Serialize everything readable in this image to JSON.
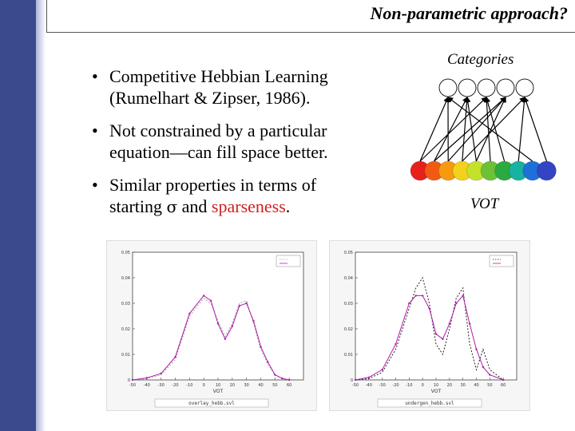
{
  "slide": {
    "title": "Non-parametric approach?",
    "bullets": [
      {
        "line1": "Competitive Hebbian Learning",
        "line2": "(Rumelhart & Zipser, 1986)."
      },
      {
        "line1": "Not constrained by a particular",
        "line2": "equation—can fill space better."
      },
      {
        "line1": "Similar properties in terms of",
        "line2_a": "starting ",
        "sigma": "σ",
        "line2_b": " and ",
        "line2_red": "sparseness",
        "line2_c": "."
      }
    ],
    "bullet_symbol": "•"
  },
  "diagram": {
    "top_label": "Categories",
    "bottom_label": "VOT",
    "category_count": 5,
    "vot_colors": [
      "#e8201b",
      "#f25a12",
      "#f79a10",
      "#f2d21a",
      "#c5e22a",
      "#6cc236",
      "#2bab3f",
      "#17b2a0",
      "#1f6fd8",
      "#3345c2"
    ]
  },
  "chart_data": [
    {
      "type": "line",
      "title": "",
      "xlabel": "VOT",
      "ylabel": "",
      "xlim": [
        -50,
        70
      ],
      "ylim": [
        0,
        0.05
      ],
      "x": [
        -50,
        -40,
        -30,
        -20,
        -10,
        0,
        5,
        10,
        15,
        20,
        25,
        30,
        35,
        40,
        45,
        50,
        55,
        60
      ],
      "series": [
        {
          "color": "#9aa0a0",
          "dash": true,
          "values": [
            0,
            0.0005,
            0.002,
            0.008,
            0.025,
            0.032,
            0.03,
            0.023,
            0.017,
            0.022,
            0.03,
            0.031,
            0.022,
            0.012,
            0.006,
            0.002,
            0.0005,
            0
          ]
        },
        {
          "color": "#b01aa8",
          "dash": false,
          "values": [
            0,
            0.0008,
            0.0025,
            0.009,
            0.026,
            0.033,
            0.031,
            0.022,
            0.016,
            0.021,
            0.029,
            0.03,
            0.023,
            0.013,
            0.007,
            0.002,
            0.0006,
            0
          ]
        }
      ],
      "yticks": [
        "0",
        "0.01",
        "0.02",
        "0.03",
        "0.04",
        "0.05"
      ],
      "xticks": [
        "-50",
        "-40",
        "-30",
        "-20",
        "-10",
        "0",
        "10",
        "20",
        "30",
        "40",
        "50",
        "60"
      ],
      "filename": "overlay_hebb.svl"
    },
    {
      "type": "line",
      "title": "",
      "xlabel": "VOT",
      "ylabel": "",
      "xlim": [
        -50,
        70
      ],
      "ylim": [
        0,
        0.05
      ],
      "x": [
        -50,
        -40,
        -30,
        -20,
        -10,
        -5,
        0,
        5,
        10,
        15,
        20,
        25,
        30,
        35,
        40,
        45,
        50,
        60
      ],
      "series": [
        {
          "color": "#222222",
          "dash": true,
          "values": [
            0,
            0.0005,
            0.003,
            0.012,
            0.028,
            0.036,
            0.04,
            0.03,
            0.014,
            0.01,
            0.02,
            0.032,
            0.036,
            0.014,
            0.004,
            0.012,
            0.004,
            0
          ]
        },
        {
          "color": "#b01aa8",
          "dash": false,
          "values": [
            0,
            0.001,
            0.004,
            0.014,
            0.03,
            0.033,
            0.033,
            0.028,
            0.018,
            0.016,
            0.022,
            0.03,
            0.033,
            0.022,
            0.012,
            0.005,
            0.002,
            0
          ]
        }
      ],
      "yticks": [
        "0",
        "0.01",
        "0.02",
        "0.03",
        "0.04",
        "0.05"
      ],
      "xticks": [
        "-50",
        "-40",
        "-30",
        "-20",
        "-10",
        "0",
        "10",
        "20",
        "30",
        "40",
        "50",
        "60"
      ],
      "filename": "undergen_hebb.svl"
    }
  ]
}
